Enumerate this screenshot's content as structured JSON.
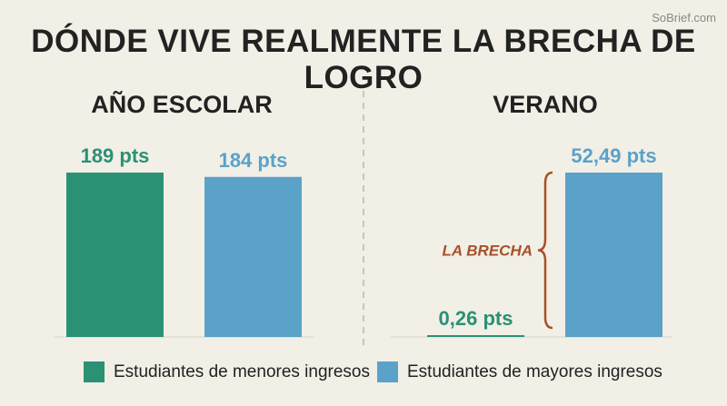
{
  "watermark": "SoBrief.com",
  "chart_data": {
    "type": "bar",
    "title": "DÓNDE VIVE REALMENTE LA BRECHA DE LOGRO",
    "colors": {
      "lower": "#2a9175",
      "higher": "#5ba2c8",
      "annotation": "#a8502a"
    },
    "panels": [
      {
        "title": "AÑO ESCOLAR",
        "series": [
          {
            "name": "Estudiantes de menores ingresos",
            "value": 189,
            "label": "189 pts"
          },
          {
            "name": "Estudiantes de mayores ingresos",
            "value": 184,
            "label": "184 pts"
          }
        ],
        "ylim": [
          0,
          189
        ]
      },
      {
        "title": "VERANO",
        "series": [
          {
            "name": "Estudiantes de menores ingresos",
            "value": 0.26,
            "label": "0,26 pts"
          },
          {
            "name": "Estudiantes de mayores ingresos",
            "value": 52.49,
            "label": "52,49 pts"
          }
        ],
        "ylim": [
          0,
          52.49
        ],
        "annotation": "LA BRECHA"
      }
    ],
    "legend": [
      "Estudiantes de menores ingresos",
      "Estudiantes de mayores ingresos"
    ]
  }
}
